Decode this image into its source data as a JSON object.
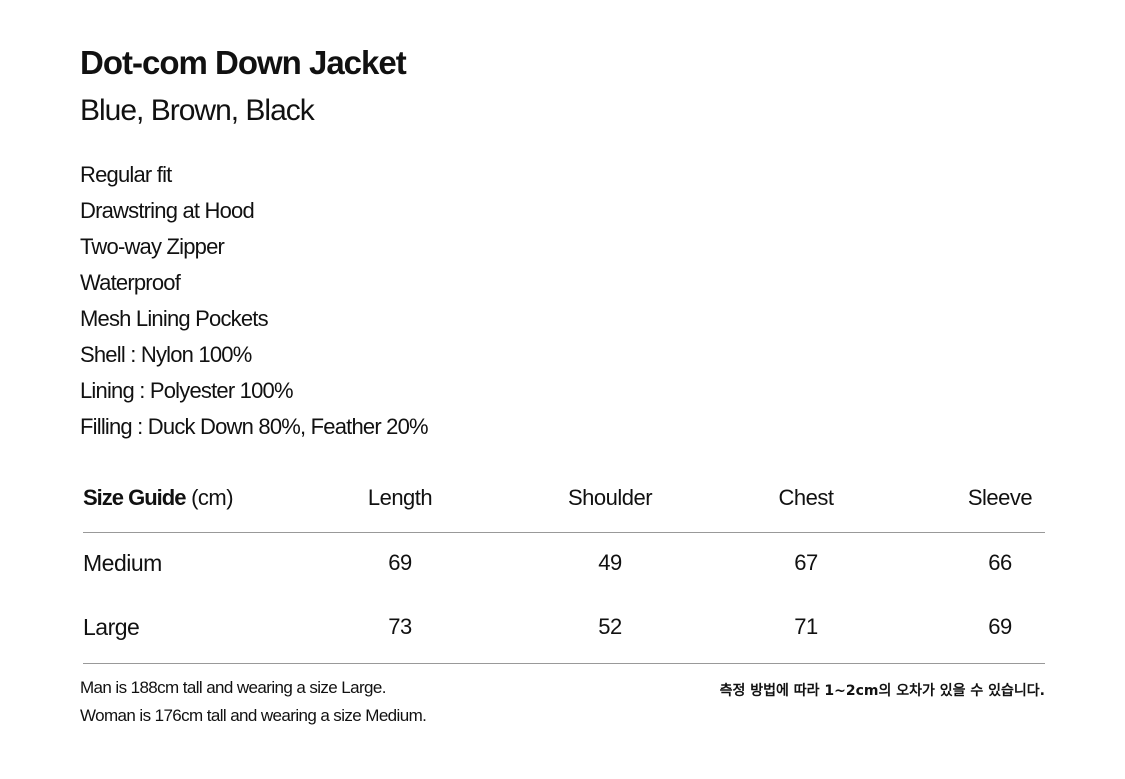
{
  "product": {
    "title": "Dot-com Down Jacket",
    "colors": "Blue, Brown, Black",
    "specs": [
      "Regular fit",
      "Drawstring at Hood",
      "Two-way Zipper",
      "Waterproof",
      "Mesh Lining Pockets",
      "Shell : Nylon 100%",
      "Lining : Polyester 100%",
      "Filling : Duck Down 80%, Feather 20%"
    ]
  },
  "size_guide": {
    "label": "Size Guide",
    "unit": "(cm)",
    "columns": [
      "Length",
      "Shoulder",
      "Chest",
      "Sleeve"
    ],
    "rows": [
      {
        "size": "Medium",
        "values": [
          "69",
          "49",
          "67",
          "66"
        ]
      },
      {
        "size": "Large",
        "values": [
          "73",
          "52",
          "71",
          "69"
        ]
      }
    ]
  },
  "footer": {
    "model_man": "Man is 188cm tall and wearing a size Large.",
    "model_woman": "Woman is 176cm tall and wearing a size Medium.",
    "note_korean": "측정 방법에 따라 1~2cm의 오차가 있을 수 있습니다."
  }
}
